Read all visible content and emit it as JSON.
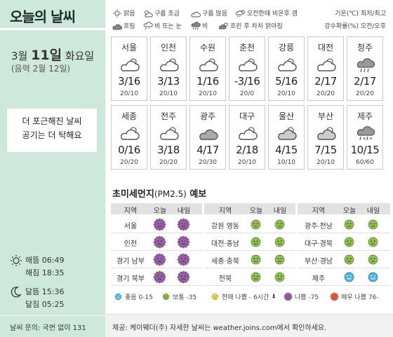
{
  "title": "오늘의 날씨",
  "date": {
    "month_label": "3월",
    "day_label": "11일",
    "weekday": "화요일",
    "lunar": "(음력 2월 12일)"
  },
  "headline": {
    "line1": "더 포근해진 날씨",
    "line2": "공기는 더 탁해요"
  },
  "sun": {
    "rise": "해뜸 06:49",
    "set": "해짐 18:35"
  },
  "moon": {
    "rise": "달뜸 15:36",
    "set": "달짐 05:25"
  },
  "inquiry": "날씨 문의: 국번 없이 131",
  "legend": {
    "items": [
      "맑음",
      "구름 조금",
      "구름 많음",
      "오전한때 비온후 갬",
      "흐림",
      "비 또는 눈",
      "비",
      "흐린 후 차차 맑아짐"
    ],
    "temp_note": "기온(℃) 최저/최고",
    "rain_note": "강수확률(%) 오전/오후"
  },
  "cities": [
    {
      "name": "서울",
      "temp": "3/16",
      "rain": "20/10",
      "icon": "cloudy"
    },
    {
      "name": "인천",
      "temp": "3/13",
      "rain": "20/10",
      "icon": "cloudy"
    },
    {
      "name": "수원",
      "temp": "1/16",
      "rain": "20/10",
      "icon": "cloudy"
    },
    {
      "name": "춘천",
      "temp": "-3/16",
      "rain": "20/0",
      "icon": "cloudy"
    },
    {
      "name": "강릉",
      "temp": "5/16",
      "rain": "20/10",
      "icon": "cloudy"
    },
    {
      "name": "대전",
      "temp": "2/17",
      "rain": "20/20",
      "icon": "cloudy"
    },
    {
      "name": "청주",
      "temp": "2/17",
      "rain": "20/20",
      "icon": "rain"
    },
    {
      "name": "세종",
      "temp": "0/16",
      "rain": "20/20",
      "icon": "cloudy"
    },
    {
      "name": "전주",
      "temp": "3/18",
      "rain": "20/20",
      "icon": "cloudy"
    },
    {
      "name": "광주",
      "temp": "4/17",
      "rain": "20/30",
      "icon": "overcast"
    },
    {
      "name": "대구",
      "temp": "2/18",
      "rain": "20/10",
      "icon": "cloudy"
    },
    {
      "name": "울산",
      "temp": "4/15",
      "rain": "10/10",
      "icon": "cloudy-clearing"
    },
    {
      "name": "부산",
      "temp": "7/15",
      "rain": "20/10",
      "icon": "cloudy-clearing"
    },
    {
      "name": "제주",
      "temp": "10/15",
      "rain": "60/60",
      "icon": "rain-snow"
    }
  ],
  "dust": {
    "title": "초미세먼지",
    "title_paren": "(PM2.5)",
    "title_suffix": " 예보",
    "headers": {
      "region": "지역",
      "today": "오늘",
      "tomorrow": "내일"
    },
    "columns": [
      [
        {
          "region": "서울",
          "today": "bad",
          "tomorrow": "bad"
        },
        {
          "region": "인천",
          "today": "bad",
          "tomorrow": "bad"
        },
        {
          "region": "경기 남부",
          "today": "bad",
          "tomorrow": "bad"
        },
        {
          "region": "경기 북부",
          "today": "bad",
          "tomorrow": "bad"
        }
      ],
      [
        {
          "region": "강원 영동",
          "today": "normal",
          "tomorrow": "normal"
        },
        {
          "region": "대전·충남",
          "today": "normal",
          "tomorrow": "normal"
        },
        {
          "region": "세종·충북",
          "today": "normal",
          "tomorrow": "normal"
        },
        {
          "region": "전북",
          "today": "normal",
          "tomorrow": "normal"
        }
      ],
      [
        {
          "region": "광주·전남",
          "today": "normal",
          "tomorrow": "normal"
        },
        {
          "region": "대구·경북",
          "today": "normal",
          "tomorrow": "normal"
        },
        {
          "region": "부산·경남",
          "today": "normal",
          "tomorrow": "normal"
        },
        {
          "region": "제주",
          "today": "good",
          "tomorrow": "good"
        }
      ]
    ],
    "legend": {
      "good": "좋음 0-15",
      "normal": "보통 -35",
      "temp_bad": "한때 나쁨 - 6시간",
      "bad": "나쁨 -75",
      "very_bad": "매우 나쁨 76-"
    },
    "colors": {
      "good": "#4ab4e6",
      "normal": "#8fc24a",
      "temp_bad": "#f3e24c",
      "bad": "#9b5ea8",
      "very_bad": "#e8603a"
    }
  },
  "footer": "제공: 케이웨더(주) 자세한 날씨는 weather.joins.com에서 확인하세요."
}
